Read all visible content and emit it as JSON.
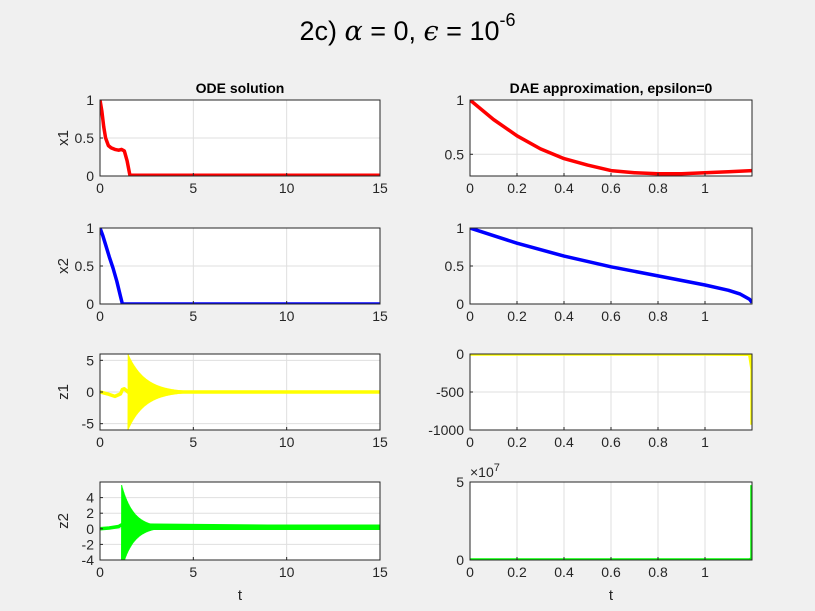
{
  "figure": {
    "title_prefix": "2c) ",
    "title_alpha": "α",
    "title_mid": " = 0, ",
    "title_eps": "ϵ",
    "title_value": " = 10",
    "title_exp": "-6"
  },
  "chart_data": [
    {
      "id": "ode-x1",
      "type": "line",
      "title": "ODE solution",
      "xlabel": "",
      "ylabel": "x1",
      "xlim": [
        0,
        15
      ],
      "ylim": [
        0,
        1
      ],
      "grid": true,
      "color": "#ff0000",
      "xticks": [
        0,
        5,
        10,
        15
      ],
      "yticks": [
        0,
        0.5,
        1
      ],
      "series": [
        {
          "x": [
            0,
            0.1,
            0.2,
            0.3,
            0.45,
            0.6,
            0.8,
            1.0,
            1.15,
            1.3,
            1.45,
            1.6,
            2.0,
            5,
            10,
            15
          ],
          "y": [
            1,
            0.85,
            0.65,
            0.5,
            0.4,
            0.37,
            0.35,
            0.34,
            0.35,
            0.33,
            0.2,
            0.01,
            0.01,
            0.01,
            0.01,
            0.01
          ]
        }
      ]
    },
    {
      "id": "dae-x1",
      "type": "line",
      "title": "DAE approximation, epsilon=0",
      "xlabel": "",
      "ylabel": "",
      "xlim": [
        0,
        1.2
      ],
      "ylim": [
        0.3,
        1
      ],
      "grid": true,
      "color": "#ff0000",
      "xticks": [
        0,
        0.2,
        0.4,
        0.6,
        0.8,
        1
      ],
      "yticks": [
        0.5,
        1
      ],
      "series": [
        {
          "x": [
            0,
            0.1,
            0.2,
            0.3,
            0.4,
            0.5,
            0.6,
            0.7,
            0.8,
            0.9,
            1.0,
            1.1,
            1.2
          ],
          "y": [
            1,
            0.82,
            0.67,
            0.55,
            0.46,
            0.4,
            0.35,
            0.33,
            0.32,
            0.32,
            0.33,
            0.34,
            0.35
          ]
        }
      ]
    },
    {
      "id": "ode-x2",
      "type": "line",
      "title": "",
      "xlabel": "",
      "ylabel": "x2",
      "xlim": [
        0,
        15
      ],
      "ylim": [
        0,
        1
      ],
      "grid": true,
      "color": "#0000ff",
      "xticks": [
        0,
        5,
        10,
        15
      ],
      "yticks": [
        0,
        0.5,
        1
      ],
      "series": [
        {
          "x": [
            0,
            0.15,
            0.3,
            0.5,
            0.7,
            0.9,
            1.1,
            1.2,
            2,
            5,
            10,
            15
          ],
          "y": [
            1,
            0.9,
            0.78,
            0.62,
            0.47,
            0.3,
            0.1,
            0,
            0,
            0,
            0,
            0
          ]
        }
      ]
    },
    {
      "id": "dae-x2",
      "type": "line",
      "title": "",
      "xlabel": "",
      "ylabel": "",
      "xlim": [
        0,
        1.2
      ],
      "ylim": [
        0,
        1
      ],
      "grid": true,
      "color": "#0000ff",
      "xticks": [
        0,
        0.2,
        0.4,
        0.6,
        0.8,
        1
      ],
      "yticks": [
        0,
        0.5,
        1
      ],
      "series": [
        {
          "x": [
            0,
            0.2,
            0.4,
            0.6,
            0.8,
            1.0,
            1.1,
            1.15,
            1.19,
            1.2
          ],
          "y": [
            1,
            0.8,
            0.63,
            0.49,
            0.37,
            0.25,
            0.18,
            0.13,
            0.06,
            0.02
          ]
        }
      ]
    },
    {
      "id": "ode-z1",
      "type": "line",
      "title": "",
      "xlabel": "",
      "ylabel": "z1",
      "xlim": [
        0,
        15
      ],
      "ylim": [
        -6,
        6
      ],
      "grid": true,
      "color": "#ffff00",
      "xticks": [
        0,
        5,
        10,
        15
      ],
      "yticks": [
        -5,
        0,
        5
      ],
      "series": [
        {
          "x": [
            0,
            0.4,
            0.8,
            1.1,
            1.2,
            1.3,
            1.5,
            15
          ],
          "y": [
            0,
            -0.3,
            -0.7,
            -0.3,
            0.4,
            0.5,
            0,
            0
          ]
        }
      ],
      "oscillation": {
        "t_start": 1.5,
        "amplitude": 6,
        "decay": 1.1
      }
    },
    {
      "id": "dae-z1",
      "type": "line",
      "title": "",
      "xlabel": "",
      "ylabel": "",
      "xlim": [
        0,
        1.2
      ],
      "ylim": [
        -1000,
        0
      ],
      "grid": true,
      "color": "#ffff00",
      "xticks": [
        0,
        0.2,
        0.4,
        0.6,
        0.8,
        1
      ],
      "yticks": [
        -1000,
        -500,
        0
      ],
      "series": [
        {
          "x": [
            0,
            0.5,
            1.0,
            1.19,
            1.2,
            1.2
          ],
          "y": [
            0,
            0,
            0,
            -2,
            -200,
            -930
          ]
        }
      ]
    },
    {
      "id": "ode-z2",
      "type": "line",
      "title": "",
      "xlabel": "t",
      "ylabel": "z2",
      "xlim": [
        0,
        15
      ],
      "ylim": [
        -4,
        6
      ],
      "grid": true,
      "color": "#00ff00",
      "xticks": [
        0,
        5,
        10,
        15
      ],
      "yticks": [
        -4,
        -2,
        0,
        2,
        4
      ],
      "series": [
        {
          "x": [
            0,
            0.5,
            1.0,
            1.15,
            15
          ],
          "y": [
            0,
            0.1,
            0.3,
            0.5,
            0.2
          ]
        }
      ],
      "oscillation": {
        "t_start": 1.15,
        "amplitude": 5.5,
        "decay": 1.6,
        "center": 0.2,
        "floor": 0.35
      }
    },
    {
      "id": "dae-z2",
      "type": "line",
      "title": "",
      "xlabel": "t",
      "ylabel": "",
      "xlim": [
        0,
        1.2
      ],
      "ylim": [
        0,
        50000000
      ],
      "grid": true,
      "color": "#00ff00",
      "xticks": [
        0,
        0.2,
        0.4,
        0.6,
        0.8,
        1
      ],
      "yticks": [
        0,
        5
      ],
      "ytick_labels": [
        "0",
        "5"
      ],
      "exponent_label": "×10",
      "exponent": "7",
      "series": [
        {
          "x": [
            0,
            0.5,
            1.0,
            1.19,
            1.2,
            1.2
          ],
          "y": [
            0,
            0,
            0,
            0,
            1000000,
            48000000
          ]
        }
      ]
    }
  ]
}
